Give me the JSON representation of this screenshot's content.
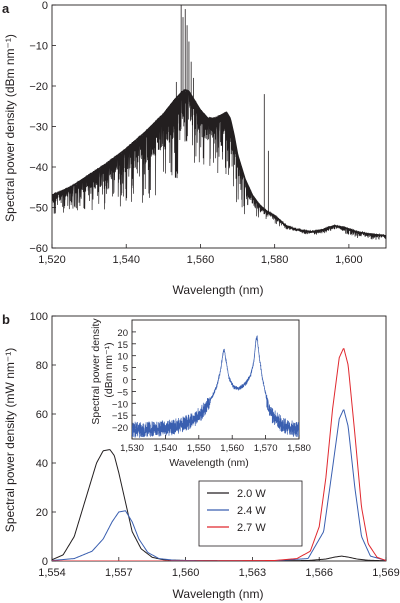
{
  "chart_data": [
    {
      "panel_label": "a",
      "type": "line",
      "xlabel": "Wavelength (nm)",
      "ylabel": "Spectral power density (dBm nm⁻¹)",
      "xlim": [
        1520,
        1610
      ],
      "ylim": [
        -60,
        0
      ],
      "xticks": [
        1520,
        1540,
        1560,
        1580,
        1600
      ],
      "xtick_labels": [
        "1,520",
        "1,540",
        "1,560",
        "1,580",
        "1,600"
      ],
      "yticks": [
        0,
        -10,
        -20,
        -30,
        -40,
        -50,
        -60
      ],
      "ytick_labels": [
        "0",
        "−10",
        "−20",
        "−30",
        "−40",
        "−50",
        "−60"
      ],
      "grid": false,
      "series": [
        {
          "color": "#231f20",
          "x": [
            1520,
            1525,
            1530,
            1535,
            1540,
            1545,
            1550,
            1553,
            1555,
            1556,
            1557,
            1558,
            1560,
            1562,
            1564,
            1566,
            1567,
            1568,
            1569,
            1570,
            1572,
            1574,
            1576,
            1578,
            1580,
            1583,
            1586,
            1590,
            1593,
            1596,
            1599,
            1602,
            1605,
            1610
          ],
          "values": [
            -47,
            -45,
            -42,
            -39,
            -35.5,
            -31.5,
            -27,
            -23.5,
            -21.5,
            -21,
            -21.5,
            -23,
            -26,
            -28,
            -28,
            -27,
            -26.5,
            -28,
            -32,
            -37,
            -43,
            -47,
            -49.5,
            -51,
            -52,
            -54.5,
            -55.5,
            -56,
            -55.5,
            -54.5,
            -55,
            -56,
            -56.5,
            -57
          ],
          "noise_floor": [
            -52,
            -51,
            -51,
            -51,
            -50,
            -49,
            -46,
            -44,
            -42,
            -40,
            -40,
            -40,
            -40,
            -41,
            -42,
            -43,
            -44,
            -46,
            -48,
            -50,
            -52,
            -53,
            -53,
            -53,
            -54,
            -55.5,
            -56,
            -57,
            -56.5,
            -55.5,
            -56.5,
            -57.5,
            -58,
            -58
          ],
          "spikes": [
            {
              "x": 1554.8,
              "y": 0
            },
            {
              "x": 1555.3,
              "y": -3
            },
            {
              "x": 1555.9,
              "y": -1
            },
            {
              "x": 1556.4,
              "y": -5
            },
            {
              "x": 1556.9,
              "y": -9
            },
            {
              "x": 1557.5,
              "y": -14
            },
            {
              "x": 1558.1,
              "y": -18
            },
            {
              "x": 1553.5,
              "y": -19
            },
            {
              "x": 1552.8,
              "y": -24
            },
            {
              "x": 1577.2,
              "y": -22
            },
            {
              "x": 1578.3,
              "y": -36
            }
          ]
        }
      ]
    },
    {
      "panel_label": "b",
      "type": "line",
      "xlabel": "Wavelength (nm)",
      "ylabel": "Spectral power density (mW nm⁻¹)",
      "xlim": [
        1554,
        1569
      ],
      "ylim": [
        0,
        100
      ],
      "xticks": [
        1554,
        1557,
        1560,
        1563,
        1566,
        1569
      ],
      "xtick_labels": [
        "1,554",
        "1,557",
        "1,560",
        "1,563",
        "1,566",
        "1,569"
      ],
      "yticks": [
        0,
        20,
        40,
        60,
        80,
        100
      ],
      "ytick_labels": [
        "0",
        "20",
        "40",
        "60",
        "80",
        "100"
      ],
      "grid": false,
      "legend_position": "center-right",
      "series": [
        {
          "name": "2.0 W",
          "color": "#231f20",
          "x": [
            1554.0,
            1554.5,
            1555.0,
            1555.5,
            1556.0,
            1556.3,
            1556.6,
            1556.8,
            1557.0,
            1557.3,
            1557.6,
            1558.0,
            1558.5,
            1559.0,
            1560.0,
            1562.0,
            1564.0,
            1565.5,
            1566.3,
            1566.7,
            1567.0,
            1567.3,
            1567.7,
            1568.2,
            1569.0
          ],
          "values": [
            0.5,
            2.5,
            10,
            25,
            40,
            45,
            45.5,
            43,
            36,
            24,
            12,
            5,
            1.5,
            0.5,
            0.2,
            0.1,
            0.1,
            0.2,
            0.8,
            1.6,
            2,
            1.6,
            0.8,
            0.3,
            0.1
          ]
        },
        {
          "name": "2.4 W",
          "color": "#3a5fb0",
          "x": [
            1554.0,
            1555.0,
            1555.8,
            1556.3,
            1556.7,
            1557.0,
            1557.3,
            1557.6,
            1557.9,
            1558.3,
            1558.8,
            1559.5,
            1561.0,
            1564.0,
            1565.5,
            1566.2,
            1566.6,
            1566.9,
            1567.1,
            1567.3,
            1567.6,
            1567.9,
            1568.3,
            1569.0
          ],
          "values": [
            0.2,
            1,
            4,
            9,
            16,
            20,
            20.5,
            16,
            9,
            3.5,
            1,
            0.3,
            0.1,
            0.1,
            1,
            12,
            38,
            58,
            62,
            55,
            30,
            10,
            2,
            0.2
          ]
        },
        {
          "name": "2.7 W",
          "color": "#e0282e",
          "x": [
            1554.0,
            1557.0,
            1560.0,
            1564.0,
            1565.0,
            1565.6,
            1566.0,
            1566.3,
            1566.6,
            1566.9,
            1567.1,
            1567.3,
            1567.6,
            1567.9,
            1568.2,
            1568.6,
            1569.0
          ],
          "values": [
            0,
            0,
            0,
            0.2,
            1,
            4,
            14,
            34,
            62,
            83,
            87,
            80,
            52,
            22,
            7,
            1.5,
            0.2
          ]
        }
      ]
    },
    {
      "panel_label": "",
      "type": "line",
      "xlabel": "Wavelength (nm)",
      "ylabel": "Spectral power density (dBm nm⁻¹)",
      "xlim": [
        1530,
        1580
      ],
      "ylim": [
        -25,
        25
      ],
      "xticks": [
        1530,
        1540,
        1550,
        1560,
        1570,
        1580
      ],
      "xtick_labels": [
        "1,530",
        "1,540",
        "1,550",
        "1,560",
        "1,570",
        "1,580"
      ],
      "yticks": [
        20,
        15,
        10,
        5,
        0,
        -5,
        -10,
        -15,
        -20
      ],
      "ytick_labels": [
        "20",
        "15",
        "10",
        "5",
        "0",
        "−5",
        "−10",
        "−15",
        "−20"
      ],
      "grid": false,
      "series": [
        {
          "color": "#3a5fb0",
          "x": [
            1530,
            1534,
            1538,
            1542,
            1545,
            1548,
            1550,
            1552,
            1554,
            1555.5,
            1556.5,
            1557.2,
            1557.6,
            1558.1,
            1559,
            1560.5,
            1562,
            1564,
            1565.5,
            1566.5,
            1567.1,
            1567.5,
            1568,
            1569,
            1570.5,
            1572,
            1575,
            1578,
            1580
          ],
          "values": [
            -20,
            -20,
            -19.5,
            -19,
            -18,
            -16,
            -14,
            -11,
            -7,
            -2,
            4,
            11,
            13,
            9,
            1,
            -3,
            -3.5,
            -1.5,
            2,
            8,
            17,
            18,
            11,
            1,
            -9,
            -14,
            -18,
            -19.5,
            -20
          ]
        }
      ]
    }
  ],
  "legend": {
    "entries": [
      {
        "label": "2.0 W",
        "color": "#231f20"
      },
      {
        "label": "2.4 W",
        "color": "#3a5fb0"
      },
      {
        "label": "2.7 W",
        "color": "#e0282e"
      }
    ]
  }
}
